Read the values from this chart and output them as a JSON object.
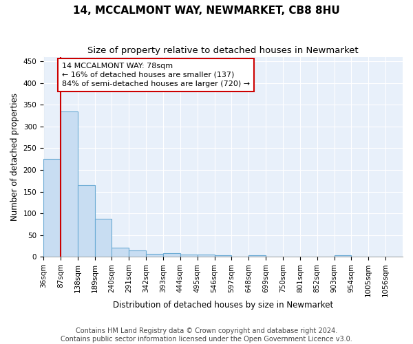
{
  "title": "14, MCCALMONT WAY, NEWMARKET, CB8 8HU",
  "subtitle": "Size of property relative to detached houses in Newmarket",
  "xlabel": "Distribution of detached houses by size in Newmarket",
  "ylabel": "Number of detached properties",
  "bar_color": "#c8ddf2",
  "bar_edge_color": "#6aaad4",
  "background_color": "#e8f0fa",
  "grid_color": "#ffffff",
  "annotation_box_color": "#cc0000",
  "annotation_text": "14 MCCALMONT WAY: 78sqm\n← 16% of detached houses are smaller (137)\n84% of semi-detached houses are larger (720) →",
  "marker_line_color": "#cc0000",
  "categories": [
    "36sqm",
    "87sqm",
    "138sqm",
    "189sqm",
    "240sqm",
    "291sqm",
    "342sqm",
    "393sqm",
    "444sqm",
    "495sqm",
    "546sqm",
    "597sqm",
    "648sqm",
    "699sqm",
    "750sqm",
    "801sqm",
    "852sqm",
    "903sqm",
    "954sqm",
    "1005sqm",
    "1056sqm"
  ],
  "bin_edges": [
    36,
    87,
    138,
    189,
    240,
    291,
    342,
    393,
    444,
    495,
    546,
    597,
    648,
    699,
    750,
    801,
    852,
    903,
    954,
    1005,
    1056,
    1107
  ],
  "values": [
    225,
    335,
    165,
    87,
    21,
    15,
    7,
    8,
    5,
    5,
    3,
    0,
    4,
    0,
    0,
    0,
    0,
    4,
    0,
    0,
    0
  ],
  "ylim": [
    0,
    460
  ],
  "yticks": [
    0,
    50,
    100,
    150,
    200,
    250,
    300,
    350,
    400,
    450
  ],
  "footer": "Contains HM Land Registry data © Crown copyright and database right 2024.\nContains public sector information licensed under the Open Government Licence v3.0.",
  "footer_fontsize": 7.0,
  "title_fontsize": 11,
  "subtitle_fontsize": 9.5,
  "tick_fontsize": 7.5,
  "ylabel_fontsize": 8.5,
  "xlabel_fontsize": 8.5,
  "annotation_fontsize": 8
}
